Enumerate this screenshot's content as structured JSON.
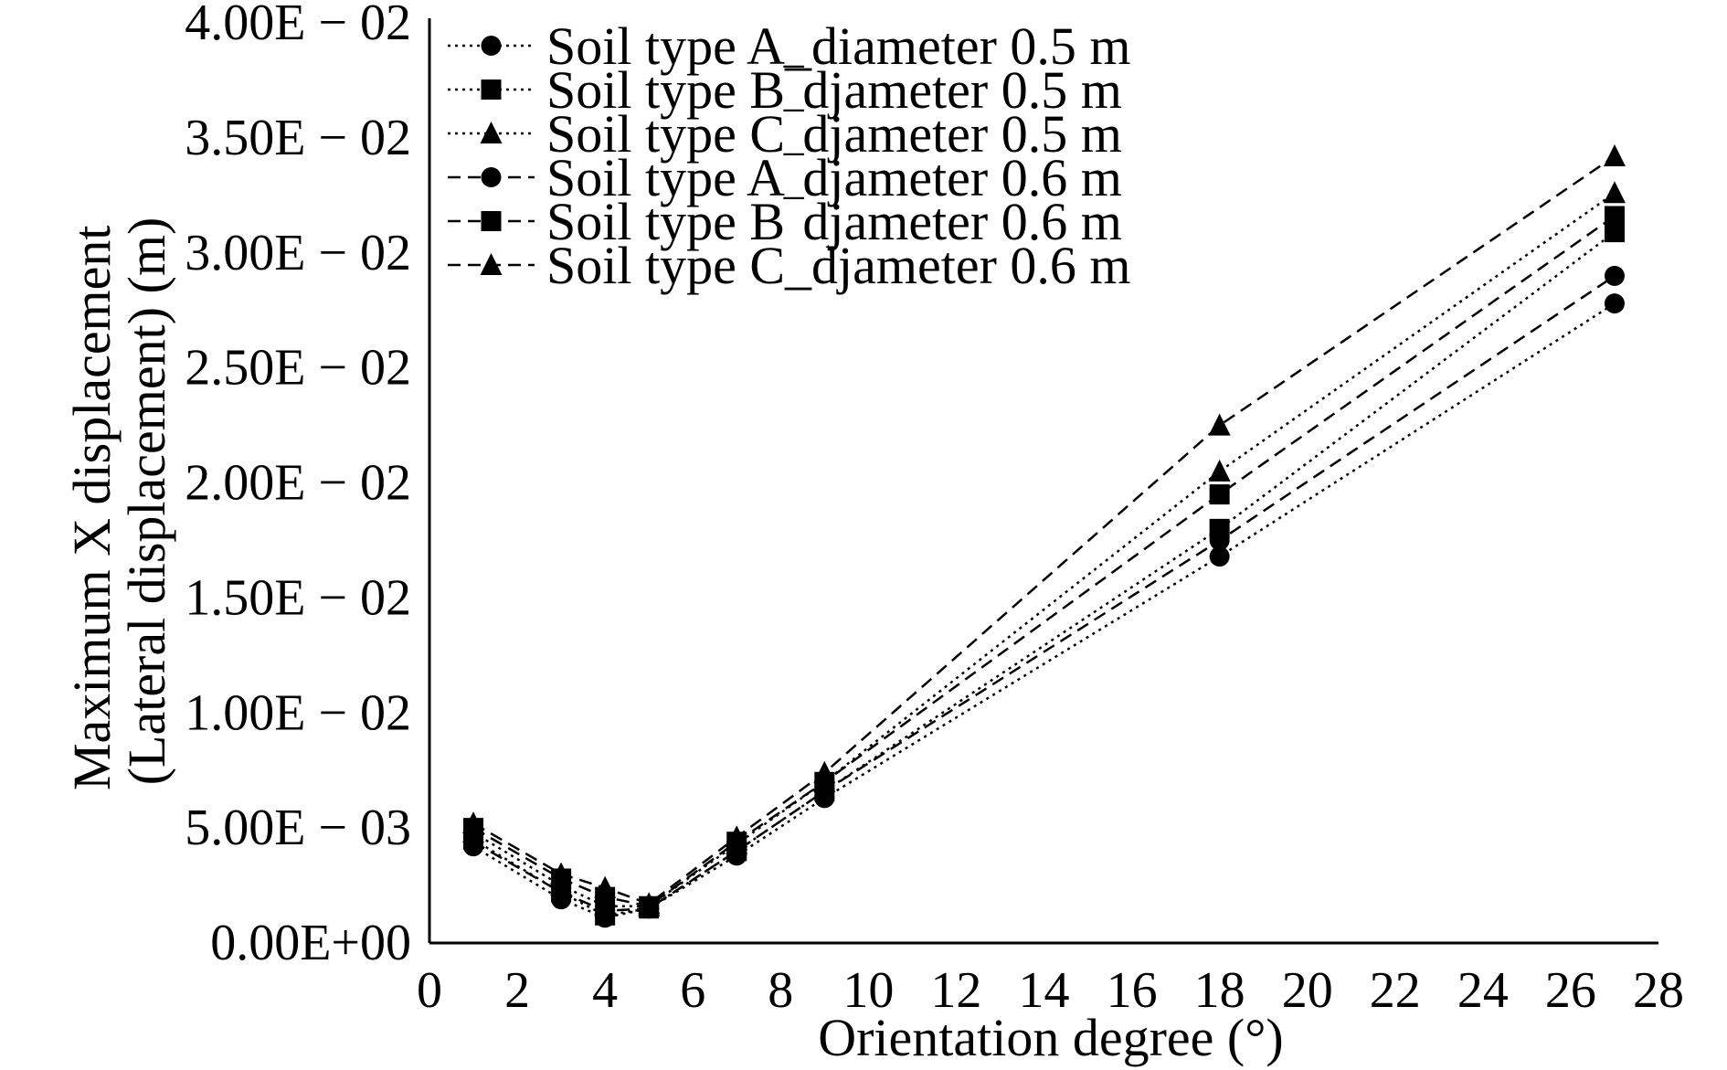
{
  "chart_data": {
    "type": "line",
    "title": "",
    "xlabel": "Orientation degree (°)",
    "ylabel_lines": [
      "Maximum X displacement",
      "(Lateral displacement) (m)"
    ],
    "xlim": [
      0,
      28
    ],
    "ylim": [
      0,
      0.04
    ],
    "xticks": [
      0,
      2,
      4,
      6,
      8,
      10,
      12,
      14,
      16,
      18,
      20,
      22,
      24,
      26,
      28
    ],
    "xtick_labels": [
      "0",
      "2",
      "4",
      "6",
      "8",
      "10",
      "12",
      "14",
      "16",
      "18",
      "20",
      "22",
      "24",
      "26",
      "28"
    ],
    "yticks": [
      0,
      0.005,
      0.01,
      0.015,
      0.02,
      0.025,
      0.03,
      0.035,
      0.04
    ],
    "ytick_labels": [
      "0.00E+00",
      "5.00E − 03",
      "1.00E − 02",
      "1.50E − 02",
      "2.00E − 02",
      "2.50E − 02",
      "3.00E − 02",
      "3.50E − 02",
      "4.00E − 02"
    ],
    "grid": false,
    "legend_position": "top-left",
    "x": [
      1,
      3,
      4,
      5,
      7,
      9,
      18,
      27
    ],
    "series": [
      {
        "name": "Soil type A_diameter 0.5 m",
        "marker": "circle",
        "line": "dotted",
        "values": [
          0.0042,
          0.0019,
          0.0011,
          0.0015,
          0.0038,
          0.0063,
          0.0168,
          0.0278
        ]
      },
      {
        "name": "Soil type B‾djameter 0.5 m",
        "marker": "square",
        "line": "dotted",
        "values": [
          0.0045,
          0.0022,
          0.0012,
          0.0015,
          0.004,
          0.0066,
          0.018,
          0.0309
        ]
      },
      {
        "name": "Soil type C‾djameter 0.5 m",
        "marker": "triangle",
        "line": "dotted",
        "values": [
          0.0048,
          0.0025,
          0.0016,
          0.0016,
          0.0043,
          0.007,
          0.0205,
          0.0326
        ]
      },
      {
        "name": "Soil type A‾djameter 0.6 m",
        "marker": "circle",
        "line": "dashed",
        "values": [
          0.0044,
          0.0022,
          0.0014,
          0.0015,
          0.004,
          0.0066,
          0.0175,
          0.029
        ]
      },
      {
        "name": "Soil type B‾djameter 0.6 m",
        "marker": "square",
        "line": "dashed",
        "values": [
          0.005,
          0.0028,
          0.002,
          0.0016,
          0.0044,
          0.007,
          0.0195,
          0.0316
        ]
      },
      {
        "name": "Soil type C_djameter 0.6 m",
        "marker": "triangle",
        "line": "dashed",
        "values": [
          0.0052,
          0.003,
          0.0024,
          0.0017,
          0.0046,
          0.0074,
          0.0225,
          0.0342
        ]
      }
    ],
    "colors": {
      "ink": "#000000",
      "background": "#ffffff"
    }
  }
}
